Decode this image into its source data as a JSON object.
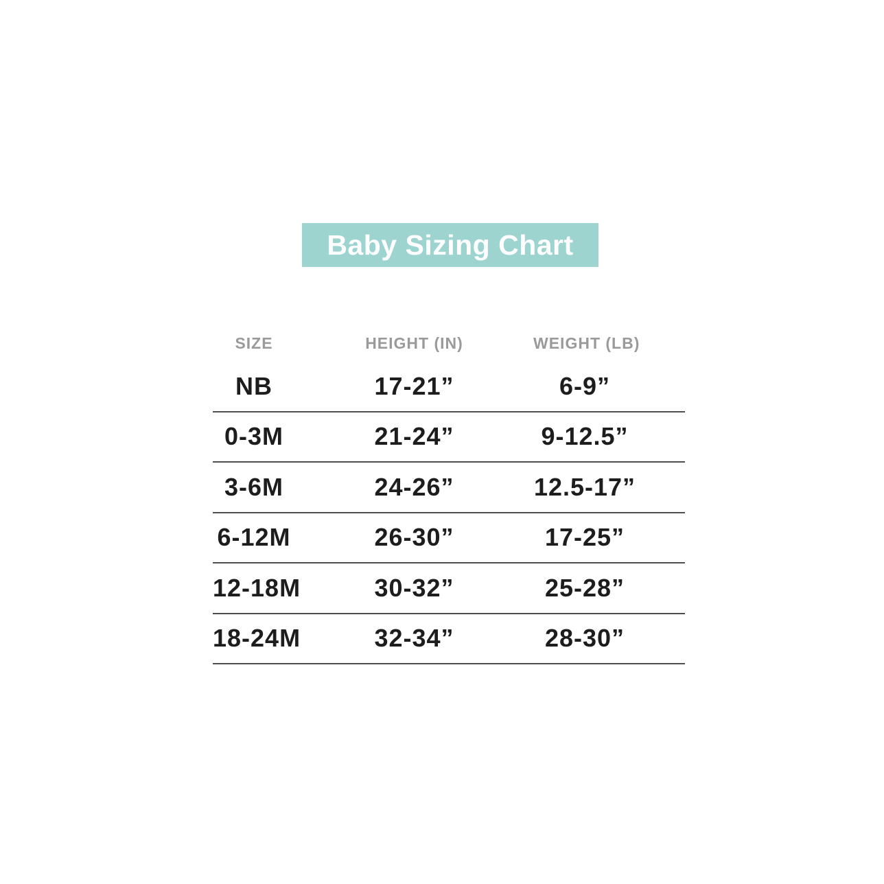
{
  "banner": {
    "label": "Baby Sizing Chart",
    "bg_color": "#9dd4d0",
    "text_color": "#ffffff"
  },
  "colors": {
    "header_text": "#9a9a9a",
    "body_text": "#1d1d1d",
    "divider": "#4d4d4d",
    "background": "#ffffff"
  },
  "chart_data": {
    "type": "table",
    "title": "Baby Sizing Chart",
    "columns": [
      "SIZE",
      "HEIGHT (IN)",
      "WEIGHT (LB)"
    ],
    "rows": [
      [
        "NB",
        "17-21”",
        "6-9”"
      ],
      [
        "0-3M",
        "21-24”",
        "9-12.5”"
      ],
      [
        "3-6M",
        "24-26”",
        "12.5-17”"
      ],
      [
        "6-12M",
        "26-30”",
        "17-25”"
      ],
      [
        "12-18M",
        "30-32”",
        "25-28”"
      ],
      [
        "18-24M",
        "32-34”",
        "28-30”"
      ]
    ],
    "layout": {
      "grid": "horizontal-dividers-only",
      "header_style": "uppercase-gray",
      "alignment": "center"
    }
  }
}
